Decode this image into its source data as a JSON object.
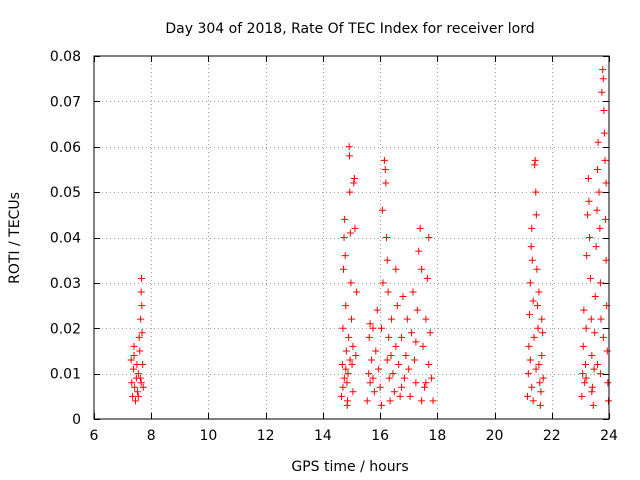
{
  "chart_data": {
    "type": "scatter",
    "title": "Day 304 of 2018, Rate Of TEC Index for receiver lord",
    "xlabel": "GPS time / hours",
    "ylabel": "ROTI / TECUs",
    "xlim": [
      6,
      24
    ],
    "ylim": [
      0,
      0.08
    ],
    "xticks": [
      6,
      8,
      10,
      12,
      14,
      16,
      18,
      20,
      22,
      24
    ],
    "yticks": [
      0,
      0.01,
      0.02,
      0.03,
      0.04,
      0.05,
      0.06,
      0.07,
      0.08
    ],
    "ytick_labels": [
      "0",
      "0.01",
      "0.02",
      "0.03",
      "0.04",
      "0.05",
      "0.06",
      "0.07",
      "0.08"
    ],
    "grid": true,
    "marker": "+",
    "color": "#ff0000",
    "series": [
      {
        "name": "ROTI",
        "points": [
          [
            7.3,
            0.013
          ],
          [
            7.32,
            0.008
          ],
          [
            7.35,
            0.005
          ],
          [
            7.38,
            0.011
          ],
          [
            7.4,
            0.014
          ],
          [
            7.42,
            0.007
          ],
          [
            7.45,
            0.004
          ],
          [
            7.48,
            0.009
          ],
          [
            7.5,
            0.012
          ],
          [
            7.52,
            0.006
          ],
          [
            7.55,
            0.01
          ],
          [
            7.58,
            0.018
          ],
          [
            7.6,
            0.015
          ],
          [
            7.62,
            0.009
          ],
          [
            7.63,
            0.022
          ],
          [
            7.65,
            0.028
          ],
          [
            7.66,
            0.031
          ],
          [
            7.67,
            0.025
          ],
          [
            7.68,
            0.019
          ],
          [
            7.7,
            0.012
          ],
          [
            7.72,
            0.007
          ],
          [
            7.4,
            0.016
          ],
          [
            7.55,
            0.005
          ],
          [
            7.65,
            0.008
          ],
          [
            14.65,
            0.005
          ],
          [
            14.68,
            0.012
          ],
          [
            14.7,
            0.02
          ],
          [
            14.72,
            0.033
          ],
          [
            14.74,
            0.04
          ],
          [
            14.76,
            0.044
          ],
          [
            14.78,
            0.036
          ],
          [
            14.8,
            0.025
          ],
          [
            14.82,
            0.015
          ],
          [
            14.84,
            0.008
          ],
          [
            14.86,
            0.004
          ],
          [
            14.88,
            0.01
          ],
          [
            14.9,
            0.018
          ],
          [
            14.92,
            0.06
          ],
          [
            14.93,
            0.058
          ],
          [
            14.94,
            0.05
          ],
          [
            14.96,
            0.041
          ],
          [
            14.98,
            0.03
          ],
          [
            15.0,
            0.022
          ],
          [
            15.02,
            0.012
          ],
          [
            15.05,
            0.006
          ],
          [
            15.08,
            0.052
          ],
          [
            15.1,
            0.053
          ],
          [
            15.12,
            0.042
          ],
          [
            15.15,
            0.014
          ],
          [
            15.18,
            0.028
          ],
          [
            14.7,
            0.007
          ],
          [
            14.75,
            0.009
          ],
          [
            14.85,
            0.003
          ],
          [
            14.95,
            0.013
          ],
          [
            15.05,
            0.016
          ],
          [
            14.8,
            0.011
          ],
          [
            15.55,
            0.004
          ],
          [
            15.6,
            0.01
          ],
          [
            15.62,
            0.018
          ],
          [
            15.65,
            0.008
          ],
          [
            15.7,
            0.013
          ],
          [
            15.75,
            0.02
          ],
          [
            15.8,
            0.006
          ],
          [
            15.85,
            0.015
          ],
          [
            15.9,
            0.024
          ],
          [
            15.95,
            0.011
          ],
          [
            16.0,
            0.007
          ],
          [
            16.05,
            0.02
          ],
          [
            16.08,
            0.046
          ],
          [
            16.1,
            0.03
          ],
          [
            16.15,
            0.057
          ],
          [
            16.18,
            0.055
          ],
          [
            16.2,
            0.052
          ],
          [
            16.22,
            0.04
          ],
          [
            16.25,
            0.035
          ],
          [
            16.28,
            0.028
          ],
          [
            16.3,
            0.018
          ],
          [
            16.32,
            0.009
          ],
          [
            16.35,
            0.004
          ],
          [
            16.38,
            0.014
          ],
          [
            16.4,
            0.022
          ],
          [
            16.45,
            0.01
          ],
          [
            16.5,
            0.006
          ],
          [
            16.55,
            0.016
          ],
          [
            16.6,
            0.025
          ],
          [
            16.65,
            0.012
          ],
          [
            16.7,
            0.005
          ],
          [
            16.75,
            0.018
          ],
          [
            16.8,
            0.027
          ],
          [
            16.85,
            0.009
          ],
          [
            16.9,
            0.014
          ],
          [
            16.95,
            0.022
          ],
          [
            17.0,
            0.011
          ],
          [
            17.05,
            0.005
          ],
          [
            17.1,
            0.019
          ],
          [
            17.15,
            0.028
          ],
          [
            17.2,
            0.013
          ],
          [
            17.25,
            0.008
          ],
          [
            17.3,
            0.024
          ],
          [
            17.35,
            0.037
          ],
          [
            17.4,
            0.042
          ],
          [
            17.45,
            0.033
          ],
          [
            17.5,
            0.016
          ],
          [
            17.55,
            0.007
          ],
          [
            17.6,
            0.022
          ],
          [
            17.65,
            0.031
          ],
          [
            17.7,
            0.04
          ],
          [
            17.75,
            0.019
          ],
          [
            17.8,
            0.009
          ],
          [
            17.85,
            0.004
          ],
          [
            17.7,
            0.012
          ],
          [
            17.6,
            0.008
          ],
          [
            15.75,
            0.009
          ],
          [
            16.25,
            0.013
          ],
          [
            16.75,
            0.007
          ],
          [
            17.25,
            0.017
          ],
          [
            17.45,
            0.004
          ],
          [
            16.05,
            0.003
          ],
          [
            15.65,
            0.021
          ],
          [
            16.55,
            0.033
          ],
          [
            21.15,
            0.005
          ],
          [
            21.18,
            0.01
          ],
          [
            21.2,
            0.016
          ],
          [
            21.22,
            0.023
          ],
          [
            21.25,
            0.03
          ],
          [
            21.28,
            0.038
          ],
          [
            21.3,
            0.042
          ],
          [
            21.32,
            0.035
          ],
          [
            21.35,
            0.026
          ],
          [
            21.38,
            0.018
          ],
          [
            21.4,
            0.056
          ],
          [
            21.42,
            0.057
          ],
          [
            21.44,
            0.05
          ],
          [
            21.46,
            0.045
          ],
          [
            21.48,
            0.033
          ],
          [
            21.5,
            0.025
          ],
          [
            21.52,
            0.02
          ],
          [
            21.55,
            0.012
          ],
          [
            21.58,
            0.008
          ],
          [
            21.6,
            0.003
          ],
          [
            21.62,
            0.006
          ],
          [
            21.65,
            0.014
          ],
          [
            21.68,
            0.019
          ],
          [
            21.7,
            0.009
          ],
          [
            21.3,
            0.007
          ],
          [
            21.45,
            0.011
          ],
          [
            21.25,
            0.013
          ],
          [
            21.55,
            0.028
          ],
          [
            21.35,
            0.004
          ],
          [
            21.65,
            0.022
          ],
          [
            23.05,
            0.005
          ],
          [
            23.08,
            0.01
          ],
          [
            23.1,
            0.016
          ],
          [
            23.12,
            0.024
          ],
          [
            23.15,
            0.008
          ],
          [
            23.18,
            0.012
          ],
          [
            23.2,
            0.02
          ],
          [
            23.22,
            0.036
          ],
          [
            23.25,
            0.045
          ],
          [
            23.28,
            0.053
          ],
          [
            23.3,
            0.048
          ],
          [
            23.32,
            0.04
          ],
          [
            23.35,
            0.031
          ],
          [
            23.38,
            0.022
          ],
          [
            23.4,
            0.014
          ],
          [
            23.42,
            0.007
          ],
          [
            23.45,
            0.003
          ],
          [
            23.48,
            0.011
          ],
          [
            23.5,
            0.019
          ],
          [
            23.52,
            0.027
          ],
          [
            23.55,
            0.038
          ],
          [
            23.58,
            0.046
          ],
          [
            23.6,
            0.055
          ],
          [
            23.62,
            0.061
          ],
          [
            23.65,
            0.05
          ],
          [
            23.68,
            0.042
          ],
          [
            23.7,
            0.03
          ],
          [
            23.72,
            0.022
          ],
          [
            23.75,
            0.072
          ],
          [
            23.78,
            0.077
          ],
          [
            23.8,
            0.075
          ],
          [
            23.82,
            0.068
          ],
          [
            23.84,
            0.063
          ],
          [
            23.86,
            0.057
          ],
          [
            23.88,
            0.044
          ],
          [
            23.9,
            0.035
          ],
          [
            23.92,
            0.025
          ],
          [
            23.94,
            0.015
          ],
          [
            23.96,
            0.008
          ],
          [
            23.98,
            0.004
          ],
          [
            23.2,
            0.009
          ],
          [
            23.4,
            0.006
          ],
          [
            23.6,
            0.012
          ],
          [
            23.8,
            0.018
          ],
          [
            23.7,
            0.01
          ],
          [
            23.9,
            0.052
          ]
        ]
      }
    ]
  }
}
